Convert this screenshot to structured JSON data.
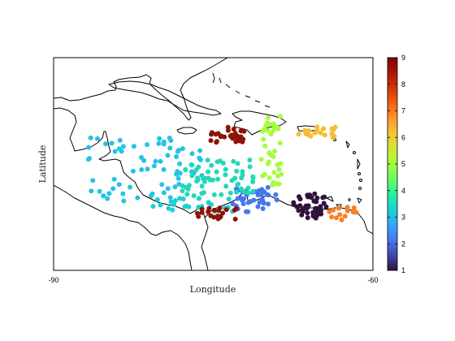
{
  "chart_data": {
    "type": "scatter",
    "title": "",
    "xlabel": "Longitude",
    "ylabel": "Latitude",
    "xlim": [
      -90,
      -60
    ],
    "x_ticks": [
      -90,
      -60
    ],
    "y_ticks": [],
    "grid": false,
    "colorbar": {
      "min": 1,
      "max": 9,
      "ticks": [
        1,
        2,
        3,
        4,
        5,
        6,
        7,
        8,
        9
      ],
      "colormap": "turbo"
    },
    "clusters": [
      {
        "value": 1,
        "color": "#30123b",
        "x_range": [
          -67.5,
          -64.3
        ],
        "y_range": [
          9.9,
          12.2
        ],
        "count": 45
      },
      {
        "value": 2,
        "color": "#4777ef",
        "x_range": [
          -73.2,
          -69.0
        ],
        "y_range": [
          10.5,
          12.8
        ],
        "count": 40
      },
      {
        "value": 3,
        "color": "#1bd0d5",
        "x_range": [
          -81.0,
          -73.0
        ],
        "y_range": [
          10.5,
          11.8
        ],
        "count": 25
      },
      {
        "value": 4,
        "color": "#26c2e3",
        "x_range": [
          -87.0,
          -76.0
        ],
        "y_range": [
          11.5,
          17.5
        ],
        "count": 70
      },
      {
        "value": 5,
        "color": "#22d8b5",
        "x_range": [
          -78.0,
          -71.0
        ],
        "y_range": [
          12.0,
          15.5
        ],
        "count": 60
      },
      {
        "value": 6,
        "color": "#a4fc3b",
        "x_range": [
          -70.5,
          -68.5
        ],
        "y_range": [
          13.0,
          19.5
        ],
        "count": 40
      },
      {
        "value": 7,
        "color": "#f5be32",
        "x_range": [
          -67.0,
          -63.5
        ],
        "y_range": [
          17.5,
          18.5
        ],
        "count": 20
      },
      {
        "value": 8,
        "color": "#fb8022",
        "x_range": [
          -64.5,
          -61.5
        ],
        "y_range": [
          9.5,
          11.0
        ],
        "count": 15
      },
      {
        "value": 9,
        "color": "#8c1406",
        "x_range": [
          -75.5,
          -72.0
        ],
        "y_range": [
          17.0,
          18.5
        ],
        "count": 30
      },
      {
        "value": 9,
        "color": "#8c1406",
        "x_range": [
          -76.5,
          -72.5
        ],
        "y_range": [
          9.8,
          11.0
        ],
        "count": 20
      }
    ]
  }
}
